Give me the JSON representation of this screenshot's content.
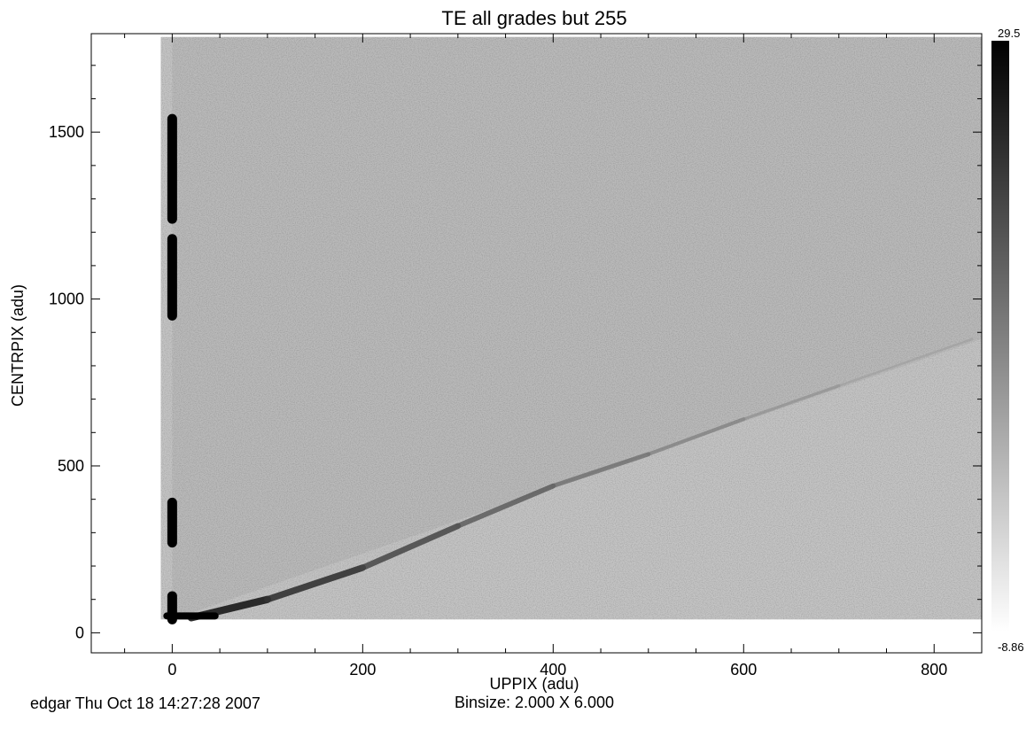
{
  "chart_data": {
    "type": "heatmap",
    "title": "TE all grades but 255",
    "xlabel": "UPPIX (adu)",
    "ylabel": "CENTRPIX (adu)",
    "subtitle": "Binsize: 2.000 X 6.000",
    "xlim": [
      -85,
      850
    ],
    "ylim": [
      -60,
      1795
    ],
    "x_ticks": [
      0,
      200,
      400,
      600,
      800
    ],
    "y_ticks": [
      0,
      500,
      1000,
      1500
    ],
    "binsize": [
      2.0,
      6.0
    ],
    "data_extent": {
      "x": [
        -12,
        850
      ],
      "y": [
        40,
        1785
      ]
    },
    "colorbar": {
      "max_label": "29.5",
      "min_label": "-8.86",
      "max": 29.5,
      "min": -8.86,
      "colormap": "inverted-gray"
    },
    "features": [
      {
        "name": "vertical band (UPPIX≈0)",
        "x": 0,
        "y_segments": [
          [
            40,
            110
          ],
          [
            270,
            390
          ],
          [
            950,
            1180
          ],
          [
            1240,
            1540
          ]
        ],
        "peak_intensity": 29.5
      },
      {
        "name": "diagonal ridge",
        "points": [
          [
            20,
            45
          ],
          [
            100,
            100
          ],
          [
            200,
            195
          ],
          [
            300,
            320
          ],
          [
            400,
            440
          ],
          [
            500,
            535
          ],
          [
            600,
            640
          ],
          [
            700,
            740
          ],
          [
            840,
            880
          ]
        ]
      },
      {
        "name": "triangular event region",
        "vertices": [
          [
            0,
            40
          ],
          [
            850,
            880
          ],
          [
            850,
            1785
          ],
          [
            0,
            1785
          ]
        ]
      }
    ]
  },
  "footer": {
    "stamp": "edgar Thu Oct 18 14:27:28 2007"
  },
  "colors": {
    "background": "#c4c4c4",
    "frame": "#000000",
    "max": "#000000",
    "min": "#ffffff"
  }
}
